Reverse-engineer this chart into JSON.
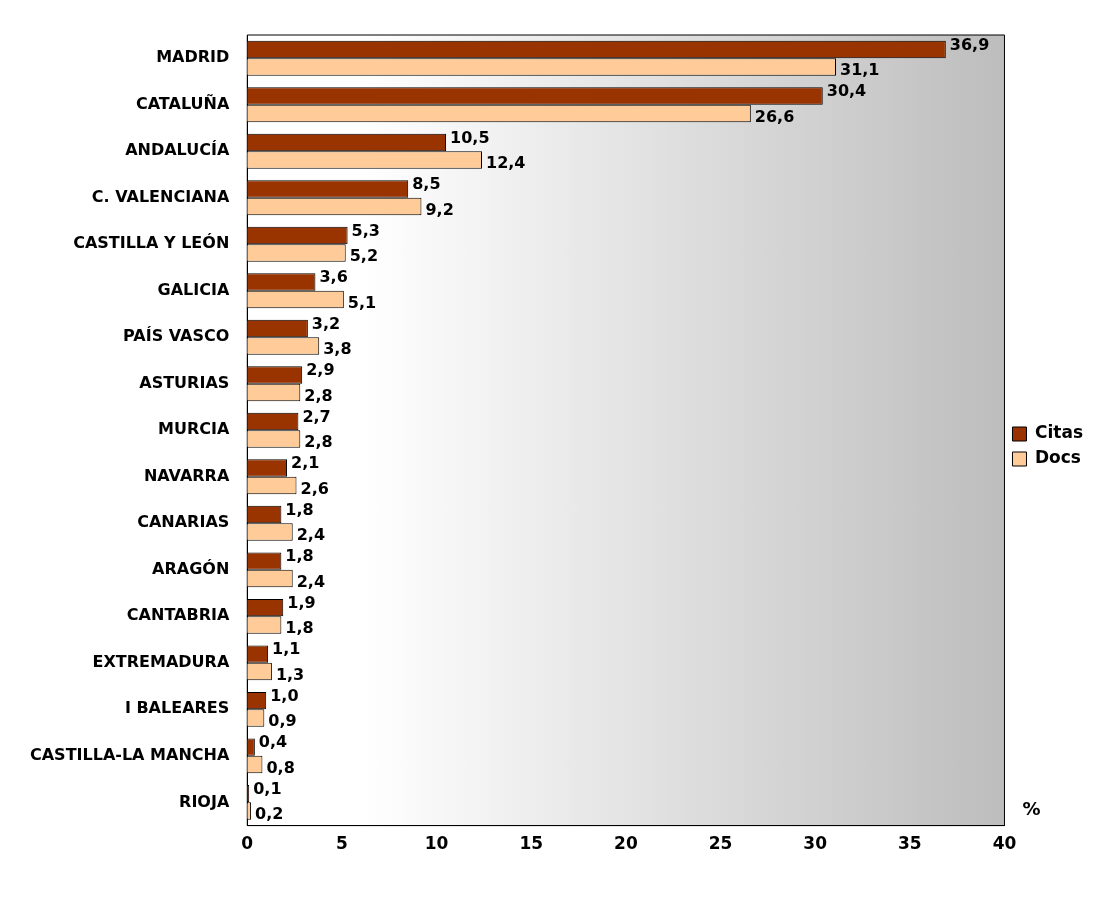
{
  "chart_data": {
    "type": "bar",
    "orientation": "horizontal",
    "xlabel": "%",
    "categories": [
      "MADRID",
      "CATALUÑA",
      "ANDALUCÍA",
      "C. VALENCIANA",
      "CASTILLA Y LEÓN",
      "GALICIA",
      "PAÍS VASCO",
      "ASTURIAS",
      "MURCIA",
      "NAVARRA",
      "CANARIAS",
      "ARAGÓN",
      "CANTABRIA",
      "EXTREMADURA",
      "I BALEARES",
      "CASTILLA-LA MANCHA",
      "RIOJA"
    ],
    "series": [
      {
        "name": "Citas",
        "color": "#993300",
        "values": [
          36.9,
          30.4,
          10.5,
          8.5,
          5.3,
          3.6,
          3.2,
          2.9,
          2.7,
          2.1,
          1.8,
          1.8,
          1.9,
          1.1,
          1.0,
          0.4,
          0.1
        ],
        "value_labels": [
          "36,9",
          "30,4",
          "10,5",
          "8,5",
          "5,3",
          "3,6",
          "3,2",
          "2,9",
          "2,7",
          "2,1",
          "1,8",
          "1,8",
          "1,9",
          "1,1",
          "1,0",
          "0,4",
          "0,1"
        ]
      },
      {
        "name": "Docs",
        "color": "#ffcc99",
        "values": [
          31.1,
          26.6,
          12.4,
          9.2,
          5.2,
          5.1,
          3.8,
          2.8,
          2.8,
          2.6,
          2.4,
          2.4,
          1.8,
          1.3,
          0.9,
          0.8,
          0.2
        ],
        "value_labels": [
          "31,1",
          "26,6",
          "12,4",
          "9,2",
          "5,2",
          "5,1",
          "3,8",
          "2,8",
          "2,8",
          "2,6",
          "2,4",
          "2,4",
          "1,8",
          "1,3",
          "0,9",
          "0,8",
          "0,2"
        ]
      }
    ],
    "xlim": [
      0,
      40
    ],
    "xticks": [
      0,
      5,
      10,
      15,
      20,
      25,
      30,
      35,
      40
    ],
    "grid": false,
    "legend": "right"
  }
}
